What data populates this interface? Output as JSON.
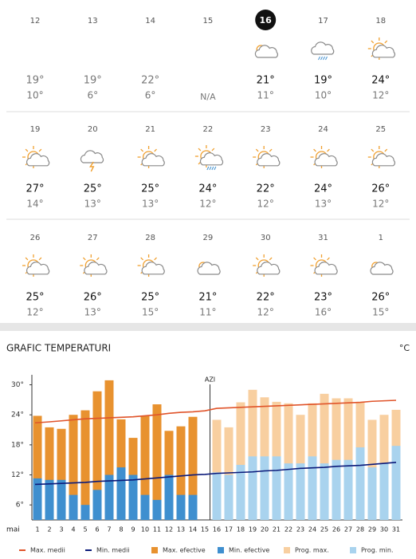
{
  "calendar": {
    "rows": [
      [
        {
          "day": "12",
          "temps": [
            "19°",
            "10°"
          ]
        },
        {
          "day": "13",
          "temps": [
            "19°",
            "6°"
          ]
        },
        {
          "day": "14",
          "temps": [
            "22°",
            "6°"
          ]
        },
        {
          "day": "15",
          "temps": [
            "N/A"
          ]
        },
        {
          "day": "16",
          "temps": [
            "21°",
            "11°"
          ],
          "selected": true
        },
        {
          "day": "17",
          "temps": [
            "19°",
            "10°"
          ]
        },
        {
          "day": "18",
          "temps": [
            "24°",
            "12°"
          ]
        }
      ],
      [
        {
          "day": "19",
          "temps": [
            "27°",
            "14°"
          ]
        },
        {
          "day": "20",
          "temps": [
            "25°",
            "13°"
          ]
        },
        {
          "day": "21",
          "temps": [
            "25°",
            "13°"
          ]
        },
        {
          "day": "22",
          "temps": [
            "24°",
            "12°"
          ]
        },
        {
          "day": "23",
          "temps": [
            "22°",
            "12°"
          ]
        },
        {
          "day": "24",
          "temps": [
            "24°",
            "13°"
          ]
        },
        {
          "day": "25",
          "temps": [
            "26°",
            "12°"
          ]
        }
      ],
      [
        {
          "day": "26",
          "temps": [
            "25°",
            "12°"
          ]
        },
        {
          "day": "27",
          "temps": [
            "26°",
            "13°"
          ]
        },
        {
          "day": "28",
          "temps": [
            "25°",
            "15°"
          ]
        },
        {
          "day": "29",
          "temps": [
            "21°",
            "11°"
          ]
        },
        {
          "day": "30",
          "temps": [
            "22°",
            "12°"
          ]
        },
        {
          "day": "31",
          "temps": [
            "23°",
            "16°"
          ]
        },
        {
          "day": "1",
          "temps": [
            "26°",
            "15°"
          ]
        }
      ]
    ]
  },
  "chart_data": {
    "type": "bar",
    "title": "GRAFIC TEMPERATURI",
    "unit": "°C",
    "xlabel": "mai",
    "annotation": {
      "text": "AZI",
      "category": "16"
    },
    "categories": [
      "1",
      "2",
      "3",
      "4",
      "5",
      "6",
      "7",
      "8",
      "9",
      "10",
      "11",
      "12",
      "13",
      "14",
      "15",
      "16",
      "17",
      "18",
      "19",
      "20",
      "21",
      "22",
      "23",
      "24",
      "25",
      "26",
      "27",
      "28",
      "29",
      "30",
      "31"
    ],
    "ylim": [
      3,
      32
    ],
    "yticks": [
      {
        "value": 6,
        "label": "6°"
      },
      {
        "value": 12,
        "label": "12°"
      },
      {
        "value": 18,
        "label": "18°"
      },
      {
        "value": 24,
        "label": "24°"
      },
      {
        "value": 30,
        "label": "30°"
      }
    ],
    "series": [
      {
        "name": "Max. medii",
        "kind": "line",
        "color": "#e0542a",
        "values": [
          22.4,
          22.6,
          22.8,
          23,
          23.2,
          23.3,
          23.4,
          23.5,
          23.6,
          23.8,
          24,
          24.3,
          24.5,
          24.6,
          24.8,
          25.3,
          25.4,
          25.5,
          25.6,
          25.7,
          25.8,
          25.9,
          26,
          26.1,
          26.2,
          26.3,
          26.4,
          26.5,
          26.7,
          26.8,
          26.9
        ]
      },
      {
        "name": "Min. medii",
        "kind": "line",
        "color": "#0b1a7a",
        "values": [
          10.1,
          10.2,
          10.3,
          10.4,
          10.5,
          10.7,
          10.8,
          10.9,
          11,
          11.2,
          11.4,
          11.6,
          11.8,
          12,
          12.1,
          12.3,
          12.4,
          12.5,
          12.6,
          12.8,
          12.9,
          13.1,
          13.3,
          13.4,
          13.5,
          13.7,
          13.8,
          13.9,
          14.1,
          14.3,
          14.5
        ]
      },
      {
        "name": "Max. efective",
        "kind": "bar",
        "color": "#e8922f",
        "values": [
          23.8,
          21.5,
          21.2,
          24,
          24.9,
          28.7,
          30.9,
          23.1,
          19.4,
          23.8,
          26.1,
          20.8,
          21.7,
          23.6,
          null,
          null,
          null,
          null,
          null,
          null,
          null,
          null,
          null,
          null,
          null,
          null,
          null,
          null,
          null,
          null,
          null
        ]
      },
      {
        "name": "Min. efective",
        "kind": "bar",
        "color": "#3f8fcf",
        "values": [
          11.3,
          11,
          11,
          8,
          6,
          9,
          12,
          13.5,
          12,
          8,
          7,
          12,
          8,
          8,
          null,
          null,
          null,
          null,
          null,
          null,
          null,
          null,
          null,
          null,
          null,
          null,
          null,
          null,
          null,
          null,
          null
        ]
      },
      {
        "name": "Prog. max.",
        "kind": "bar",
        "color": "#f8cfa0",
        "values": [
          null,
          null,
          null,
          null,
          null,
          null,
          null,
          null,
          null,
          null,
          null,
          null,
          null,
          null,
          null,
          23,
          21.5,
          26.5,
          29,
          27.5,
          26.6,
          26.3,
          24,
          26.3,
          28.2,
          27.3,
          27.3,
          26.6,
          23,
          24,
          25
        ]
      },
      {
        "name": "Prog. min.",
        "kind": "bar",
        "color": "#a9d3ee",
        "values": [
          null,
          null,
          null,
          null,
          null,
          null,
          null,
          null,
          null,
          null,
          null,
          null,
          null,
          null,
          null,
          12.5,
          12,
          14,
          15.7,
          15.7,
          15.7,
          14.3,
          14.3,
          15.7,
          14.3,
          15,
          15,
          17.5,
          13.5,
          14.3,
          17.8
        ]
      }
    ]
  }
}
